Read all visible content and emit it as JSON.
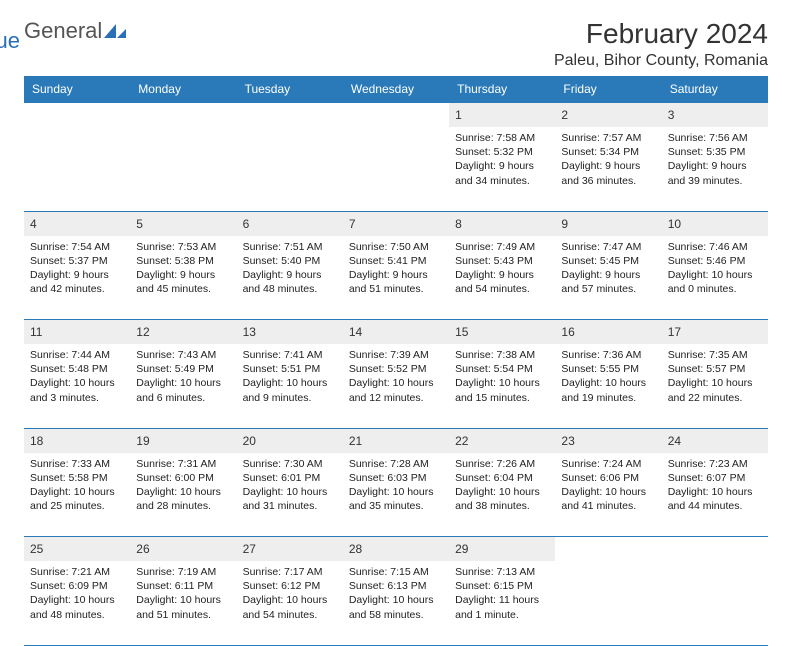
{
  "logo": {
    "text_a": "General",
    "text_b": "Blue",
    "shape_color": "#2a6fb5"
  },
  "header": {
    "month_title": "February 2024",
    "location": "Paleu, Bihor County, Romania"
  },
  "colors": {
    "header_bg": "#2a7ab9",
    "header_fg": "#ffffff",
    "daynum_bg": "#eeeeee",
    "rule": "#2a7ab9"
  },
  "day_names": [
    "Sunday",
    "Monday",
    "Tuesday",
    "Wednesday",
    "Thursday",
    "Friday",
    "Saturday"
  ],
  "weeks": [
    {
      "nums": [
        "",
        "",
        "",
        "",
        "1",
        "2",
        "3"
      ],
      "cells": [
        null,
        null,
        null,
        null,
        {
          "sunrise": "Sunrise: 7:58 AM",
          "sunset": "Sunset: 5:32 PM",
          "dl1": "Daylight: 9 hours",
          "dl2": "and 34 minutes."
        },
        {
          "sunrise": "Sunrise: 7:57 AM",
          "sunset": "Sunset: 5:34 PM",
          "dl1": "Daylight: 9 hours",
          "dl2": "and 36 minutes."
        },
        {
          "sunrise": "Sunrise: 7:56 AM",
          "sunset": "Sunset: 5:35 PM",
          "dl1": "Daylight: 9 hours",
          "dl2": "and 39 minutes."
        }
      ]
    },
    {
      "nums": [
        "4",
        "5",
        "6",
        "7",
        "8",
        "9",
        "10"
      ],
      "cells": [
        {
          "sunrise": "Sunrise: 7:54 AM",
          "sunset": "Sunset: 5:37 PM",
          "dl1": "Daylight: 9 hours",
          "dl2": "and 42 minutes."
        },
        {
          "sunrise": "Sunrise: 7:53 AM",
          "sunset": "Sunset: 5:38 PM",
          "dl1": "Daylight: 9 hours",
          "dl2": "and 45 minutes."
        },
        {
          "sunrise": "Sunrise: 7:51 AM",
          "sunset": "Sunset: 5:40 PM",
          "dl1": "Daylight: 9 hours",
          "dl2": "and 48 minutes."
        },
        {
          "sunrise": "Sunrise: 7:50 AM",
          "sunset": "Sunset: 5:41 PM",
          "dl1": "Daylight: 9 hours",
          "dl2": "and 51 minutes."
        },
        {
          "sunrise": "Sunrise: 7:49 AM",
          "sunset": "Sunset: 5:43 PM",
          "dl1": "Daylight: 9 hours",
          "dl2": "and 54 minutes."
        },
        {
          "sunrise": "Sunrise: 7:47 AM",
          "sunset": "Sunset: 5:45 PM",
          "dl1": "Daylight: 9 hours",
          "dl2": "and 57 minutes."
        },
        {
          "sunrise": "Sunrise: 7:46 AM",
          "sunset": "Sunset: 5:46 PM",
          "dl1": "Daylight: 10 hours",
          "dl2": "and 0 minutes."
        }
      ]
    },
    {
      "nums": [
        "11",
        "12",
        "13",
        "14",
        "15",
        "16",
        "17"
      ],
      "cells": [
        {
          "sunrise": "Sunrise: 7:44 AM",
          "sunset": "Sunset: 5:48 PM",
          "dl1": "Daylight: 10 hours",
          "dl2": "and 3 minutes."
        },
        {
          "sunrise": "Sunrise: 7:43 AM",
          "sunset": "Sunset: 5:49 PM",
          "dl1": "Daylight: 10 hours",
          "dl2": "and 6 minutes."
        },
        {
          "sunrise": "Sunrise: 7:41 AM",
          "sunset": "Sunset: 5:51 PM",
          "dl1": "Daylight: 10 hours",
          "dl2": "and 9 minutes."
        },
        {
          "sunrise": "Sunrise: 7:39 AM",
          "sunset": "Sunset: 5:52 PM",
          "dl1": "Daylight: 10 hours",
          "dl2": "and 12 minutes."
        },
        {
          "sunrise": "Sunrise: 7:38 AM",
          "sunset": "Sunset: 5:54 PM",
          "dl1": "Daylight: 10 hours",
          "dl2": "and 15 minutes."
        },
        {
          "sunrise": "Sunrise: 7:36 AM",
          "sunset": "Sunset: 5:55 PM",
          "dl1": "Daylight: 10 hours",
          "dl2": "and 19 minutes."
        },
        {
          "sunrise": "Sunrise: 7:35 AM",
          "sunset": "Sunset: 5:57 PM",
          "dl1": "Daylight: 10 hours",
          "dl2": "and 22 minutes."
        }
      ]
    },
    {
      "nums": [
        "18",
        "19",
        "20",
        "21",
        "22",
        "23",
        "24"
      ],
      "cells": [
        {
          "sunrise": "Sunrise: 7:33 AM",
          "sunset": "Sunset: 5:58 PM",
          "dl1": "Daylight: 10 hours",
          "dl2": "and 25 minutes."
        },
        {
          "sunrise": "Sunrise: 7:31 AM",
          "sunset": "Sunset: 6:00 PM",
          "dl1": "Daylight: 10 hours",
          "dl2": "and 28 minutes."
        },
        {
          "sunrise": "Sunrise: 7:30 AM",
          "sunset": "Sunset: 6:01 PM",
          "dl1": "Daylight: 10 hours",
          "dl2": "and 31 minutes."
        },
        {
          "sunrise": "Sunrise: 7:28 AM",
          "sunset": "Sunset: 6:03 PM",
          "dl1": "Daylight: 10 hours",
          "dl2": "and 35 minutes."
        },
        {
          "sunrise": "Sunrise: 7:26 AM",
          "sunset": "Sunset: 6:04 PM",
          "dl1": "Daylight: 10 hours",
          "dl2": "and 38 minutes."
        },
        {
          "sunrise": "Sunrise: 7:24 AM",
          "sunset": "Sunset: 6:06 PM",
          "dl1": "Daylight: 10 hours",
          "dl2": "and 41 minutes."
        },
        {
          "sunrise": "Sunrise: 7:23 AM",
          "sunset": "Sunset: 6:07 PM",
          "dl1": "Daylight: 10 hours",
          "dl2": "and 44 minutes."
        }
      ]
    },
    {
      "nums": [
        "25",
        "26",
        "27",
        "28",
        "29",
        "",
        ""
      ],
      "cells": [
        {
          "sunrise": "Sunrise: 7:21 AM",
          "sunset": "Sunset: 6:09 PM",
          "dl1": "Daylight: 10 hours",
          "dl2": "and 48 minutes."
        },
        {
          "sunrise": "Sunrise: 7:19 AM",
          "sunset": "Sunset: 6:11 PM",
          "dl1": "Daylight: 10 hours",
          "dl2": "and 51 minutes."
        },
        {
          "sunrise": "Sunrise: 7:17 AM",
          "sunset": "Sunset: 6:12 PM",
          "dl1": "Daylight: 10 hours",
          "dl2": "and 54 minutes."
        },
        {
          "sunrise": "Sunrise: 7:15 AM",
          "sunset": "Sunset: 6:13 PM",
          "dl1": "Daylight: 10 hours",
          "dl2": "and 58 minutes."
        },
        {
          "sunrise": "Sunrise: 7:13 AM",
          "sunset": "Sunset: 6:15 PM",
          "dl1": "Daylight: 11 hours",
          "dl2": "and 1 minute."
        },
        null,
        null
      ]
    }
  ]
}
